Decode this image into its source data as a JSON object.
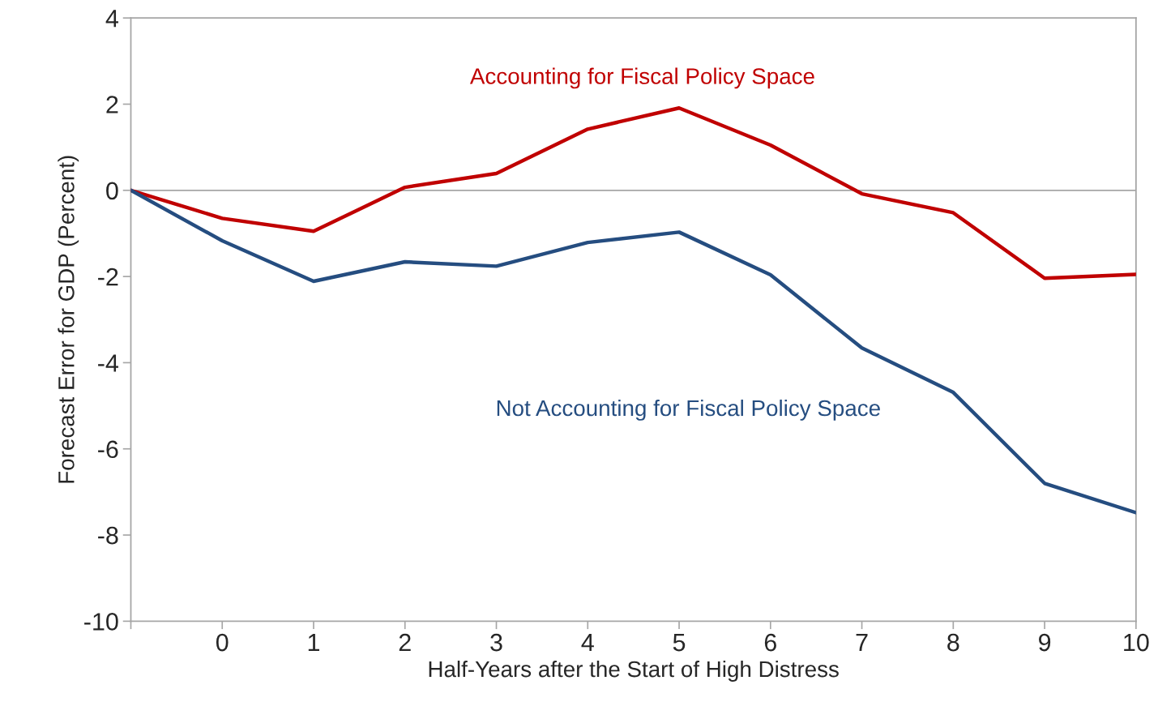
{
  "chart_data": {
    "type": "line",
    "xlabel": "Half-Years after the Start of High Distress",
    "ylabel": "Forecast Error for GDP (Percent)",
    "x": [
      -1,
      0,
      1,
      2,
      3,
      4,
      5,
      6,
      7,
      8,
      9,
      10
    ],
    "series": [
      {
        "name": "Accounting for Fiscal Policy Space",
        "color": "#c00000",
        "values": [
          0,
          -0.65,
          -0.95,
          0.07,
          0.39,
          1.42,
          1.91,
          1.05,
          -0.08,
          -0.52,
          -2.04,
          -1.95
        ]
      },
      {
        "name": "Not Accounting for Fiscal Policy Space",
        "color": "#254d80",
        "values": [
          0,
          -1.17,
          -2.11,
          -1.66,
          -1.76,
          -1.21,
          -0.97,
          -1.96,
          -3.66,
          -4.69,
          -6.8,
          -7.48
        ]
      }
    ],
    "xlim": [
      -1,
      10
    ],
    "xticks": [
      {
        "value": -1,
        "label": null
      },
      0,
      1,
      2,
      3,
      4,
      5,
      6,
      7,
      8,
      9,
      10
    ],
    "ylim": [
      -10,
      4
    ],
    "yticks": [
      -10,
      -8,
      -6,
      -4,
      -2,
      0,
      2,
      4
    ],
    "ref_lines": [
      {
        "axis": "y",
        "value": 0,
        "color": "#a6a6a6"
      }
    ],
    "grid": false,
    "legend": false,
    "marker": "none",
    "line_style": "solid"
  }
}
